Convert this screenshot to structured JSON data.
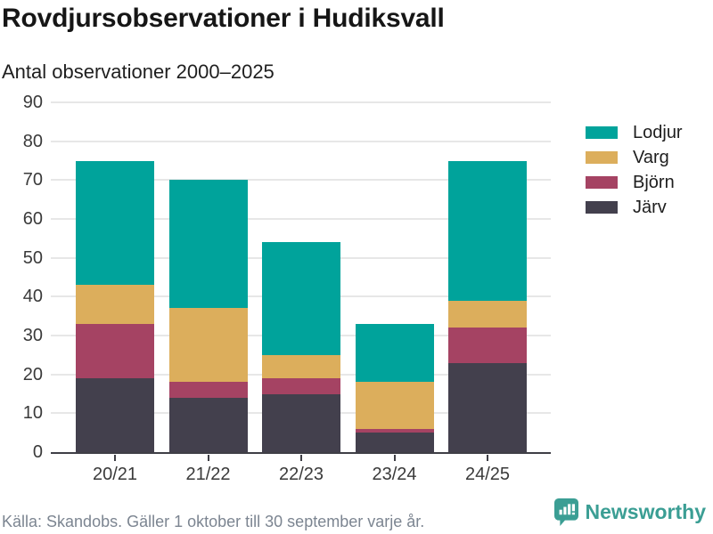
{
  "header": {
    "title": "Rovdjursobservationer i Hudiksvall",
    "subtitle": "Antal observationer 2000–2025"
  },
  "chart_data": {
    "type": "bar",
    "stacked": true,
    "title": "Rovdjursobservationer i Hudiksvall",
    "subtitle": "Antal observationer 2000–2025",
    "categories": [
      "20/21",
      "21/22",
      "22/23",
      "23/24",
      "24/25"
    ],
    "series": [
      {
        "name": "Järv",
        "color": "#43404D",
        "values": [
          19,
          14,
          15,
          5,
          23
        ]
      },
      {
        "name": "Björn",
        "color": "#A54363",
        "values": [
          14,
          4,
          4,
          1,
          9
        ]
      },
      {
        "name": "Varg",
        "color": "#DCAE5C",
        "values": [
          10,
          19,
          6,
          12,
          7
        ]
      },
      {
        "name": "Lodjur",
        "color": "#00A39B",
        "values": [
          32,
          33,
          29,
          15,
          36
        ]
      }
    ],
    "ylim": [
      0,
      90
    ],
    "yticks": [
      "0",
      "10",
      "20",
      "30",
      "40",
      "50",
      "60",
      "70",
      "80",
      "90"
    ],
    "grid": true,
    "legend_position": "right"
  },
  "legend": {
    "items": [
      {
        "label": "Lodjur",
        "color": "#00A39B"
      },
      {
        "label": "Varg",
        "color": "#DCAE5C"
      },
      {
        "label": "Björn",
        "color": "#A54363"
      },
      {
        "label": "Järv",
        "color": "#43404D"
      }
    ]
  },
  "footer": {
    "source": "Källa: Skandobs. Gäller 1 oktober till 30 september varje år.",
    "brand": "Newsworthy"
  },
  "colors": {
    "axis": "#3F3F46",
    "grid": "#E7E7E7",
    "text": "#3a3a3a",
    "muted": "#7C8591",
    "brand": "#3B9E94"
  }
}
